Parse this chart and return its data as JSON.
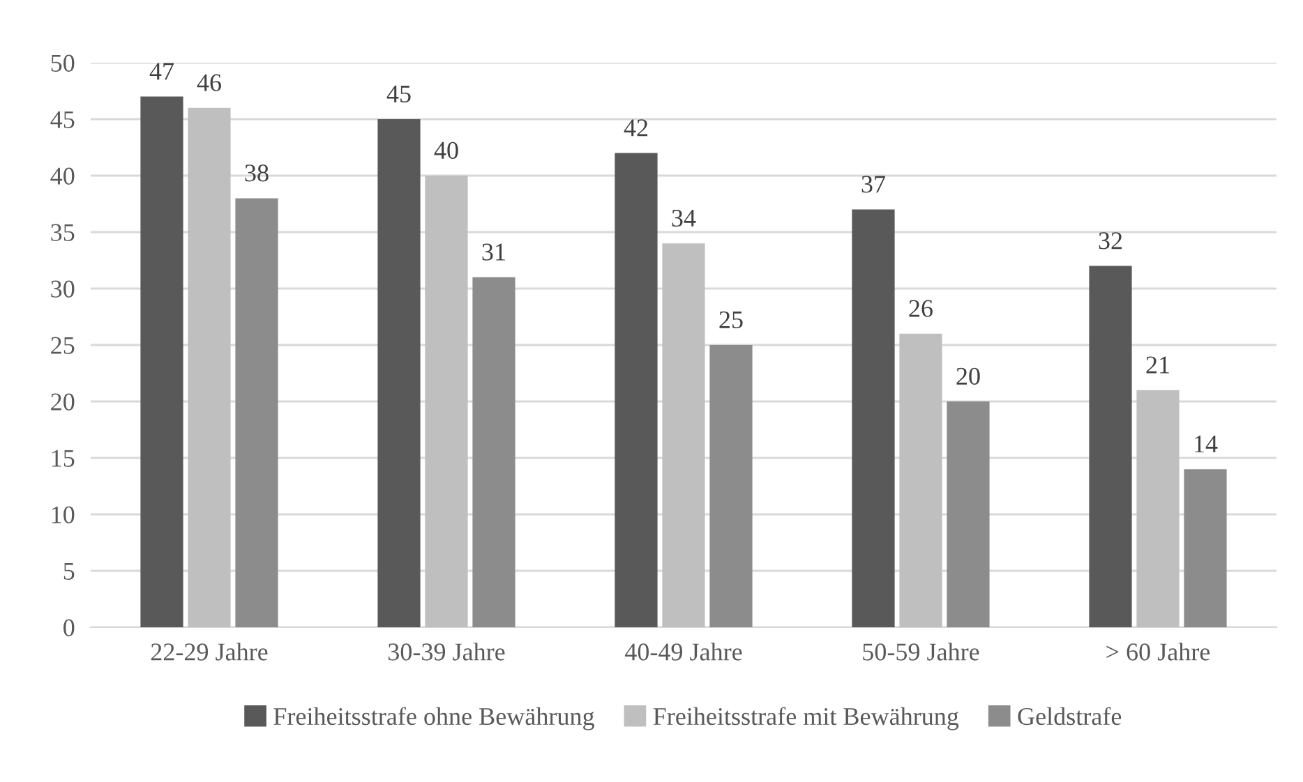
{
  "chart_data": {
    "type": "bar",
    "categories": [
      "22-29 Jahre",
      "30-39 Jahre",
      "40-49 Jahre",
      "50-59 Jahre",
      "> 60 Jahre"
    ],
    "series": [
      {
        "name": "Freiheitsstrafe ohne Bewährung",
        "color": "#595959",
        "values": [
          47,
          45,
          42,
          37,
          32
        ]
      },
      {
        "name": "Freiheitsstrafe mit Bewährung",
        "color": "#bfbfbf",
        "values": [
          46,
          40,
          34,
          26,
          21
        ]
      },
      {
        "name": "Geldstrafe",
        "color": "#8c8c8c",
        "values": [
          38,
          31,
          25,
          20,
          14
        ]
      }
    ],
    "ylim": [
      0,
      50
    ],
    "yticks": [
      0,
      5,
      10,
      15,
      20,
      25,
      30,
      35,
      40,
      45,
      50
    ],
    "grid": "y",
    "legend": "bottom",
    "data_labels": true
  }
}
